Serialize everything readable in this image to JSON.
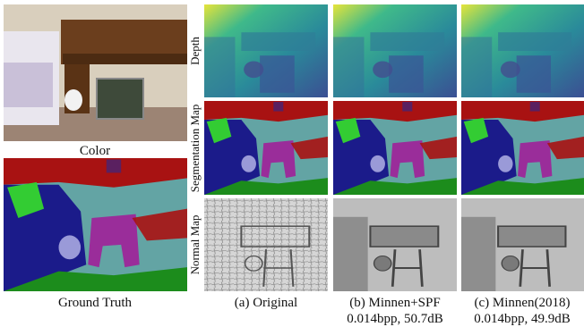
{
  "left": {
    "color_label": "Color",
    "ground_truth_label": "Ground Truth"
  },
  "rows": [
    "Depth",
    "Segmentation Map",
    "Normal Map"
  ],
  "columns": [
    {
      "label": "(a) Original"
    },
    {
      "label": "(b) Minnen+SPF",
      "stats": "0.014bpp, 50.7dB"
    },
    {
      "label": "(c) Minnen(2018)",
      "stats": "0.014bpp, 49.9dB"
    }
  ]
}
